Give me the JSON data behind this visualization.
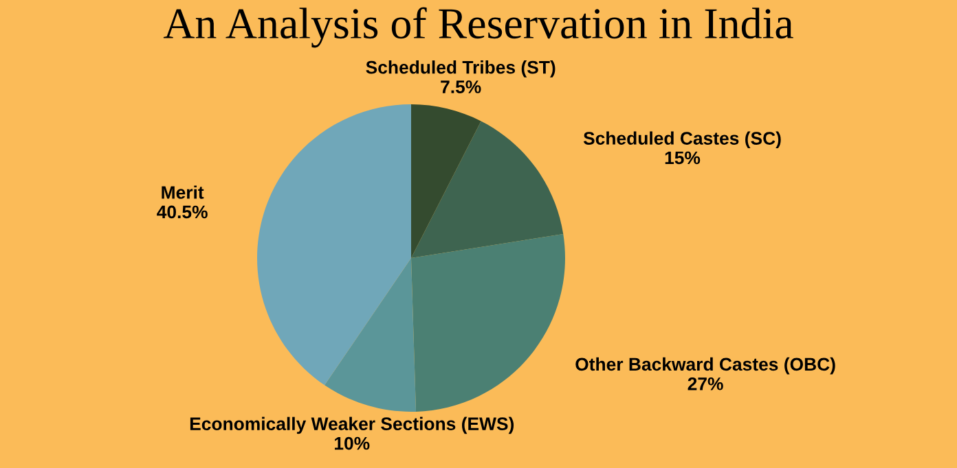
{
  "chart_data": {
    "type": "pie",
    "title": "An Analysis of Reservation in India",
    "categories": [
      "Scheduled Tribes (ST)",
      "Scheduled Castes (SC)",
      "Other Backward Castes (OBC)",
      "Economically Weaker Sections (EWS)",
      "Merit"
    ],
    "values": [
      7.5,
      15,
      27,
      10,
      40.5
    ],
    "colors": [
      "#344b2f",
      "#3e6450",
      "#4b8073",
      "#5b9699",
      "#70a7b9"
    ],
    "value_labels": [
      "7.5%",
      "15%",
      "27%",
      "10%",
      "40.5%"
    ]
  }
}
